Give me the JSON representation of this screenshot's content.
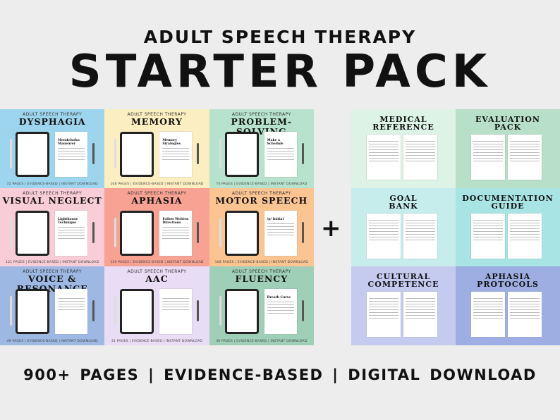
{
  "header": {
    "subtitle": "ADULT SPEECH THERAPY",
    "title": "STARTER PACK"
  },
  "modules": [
    {
      "sub": "ADULT SPEECH THERAPY",
      "title": "DYSPHAGIA",
      "page": "Mendelsohn Maneuver",
      "footer": "72 PAGES  |  EVIDENCE-BASED  |  INSTANT DOWNLOAD",
      "color": "#9dd5ee"
    },
    {
      "sub": "ADULT SPEECH THERAPY",
      "title": "MEMORY",
      "page": "Memory Strategies",
      "footer": "108 PAGES  |  EVIDENCE-BASED  |  INSTANT DOWNLOAD",
      "color": "#fbeec0"
    },
    {
      "sub": "ADULT SPEECH THERAPY",
      "title": "PROBLEM-SOLVING",
      "page": "Make a Schedule",
      "footer": "74 PAGES  |  EVIDENCE-BASED  |  INSTANT DOWNLOAD",
      "color": "#b7e2cd"
    },
    {
      "sub": "ADULT SPEECH THERAPY",
      "title": "VISUAL NEGLECT",
      "page": "Lighthouse Technique",
      "footer": "121 PAGES  |  EVIDENCE-BASED  |  INSTANT DOWNLOAD",
      "color": "#f9cdd8"
    },
    {
      "sub": "ADULT SPEECH THERAPY",
      "title": "APHASIA",
      "page": "Follow Written Directions",
      "footer": "159 PAGES  |  EVIDENCE-BASED  |  INSTANT DOWNLOAD",
      "color": "#f7a293"
    },
    {
      "sub": "ADULT SPEECH THERAPY",
      "title": "MOTOR SPEECH",
      "page": "/p/ Initial",
      "footer": "108 PAGES  |  EVIDENCE-BASED  |  INSTANT DOWNLOAD",
      "color": "#fbc491"
    },
    {
      "sub": "ADULT SPEECH THERAPY",
      "title": "VOICE & RESONANCE",
      "page": "",
      "footer": "49 PAGES  |  EVIDENCE-BASED  |  INSTANT DOWNLOAD",
      "color": "#9db8e3"
    },
    {
      "sub": "ADULT SPEECH THERAPY",
      "title": "AAC",
      "page": "",
      "footer": "31 PAGES  |  EVIDENCE-BASED  |  INSTANT DOWNLOAD",
      "color": "#e9dcf5"
    },
    {
      "sub": "ADULT SPEECH THERAPY",
      "title": "FLUENCY",
      "page": "Breath Curve",
      "footer": "36 PAGES  |  EVIDENCE-BASED  |  INSTANT DOWNLOAD",
      "color": "#9fcfb6"
    }
  ],
  "plus": "+",
  "extras": [
    {
      "title1": "MEDICAL",
      "title2": "REFERENCE",
      "color": "#dcf3e6"
    },
    {
      "title1": "EVALUATION",
      "title2": "PACK",
      "color": "#b8e0c8"
    },
    {
      "title1": "GOAL",
      "title2": "BANK",
      "color": "#c6ecec"
    },
    {
      "title1": "DOCUMENTATION",
      "title2": "GUIDE",
      "color": "#a9e4e4"
    },
    {
      "title1": "CULTURAL",
      "title2": "COMPETENCE",
      "color": "#c4cbef"
    },
    {
      "title1": "APHASIA",
      "title2": "PROTOCOLS",
      "color": "#9eaee2"
    }
  ],
  "footer": "900+ PAGES   |   EVIDENCE-BASED   |   DIGITAL DOWNLOAD"
}
